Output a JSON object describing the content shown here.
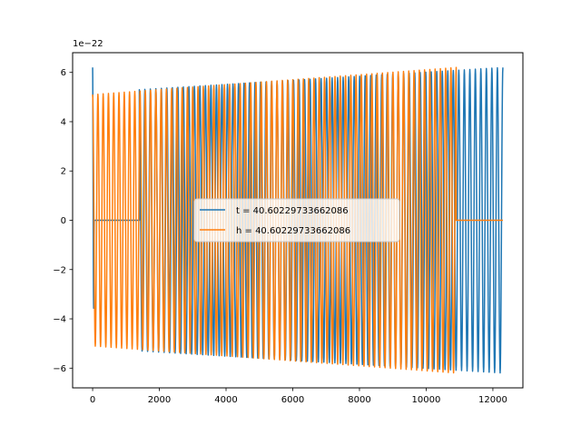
{
  "chart_data": {
    "type": "line",
    "offset_text": "1e−22",
    "xlim": [
      -600,
      12900
    ],
    "ylim": [
      -6.8,
      6.8
    ],
    "xticks": [
      0,
      2000,
      4000,
      6000,
      8000,
      10000,
      12000
    ],
    "xtick_labels": [
      "0",
      "2000",
      "4000",
      "6000",
      "8000",
      "10000",
      "12000"
    ],
    "yticks": [
      -6,
      -4,
      -2,
      0,
      2,
      4,
      6
    ],
    "ytick_labels": [
      "−6",
      "−4",
      "−2",
      "0",
      "2",
      "4",
      "6"
    ],
    "legend_placement": "center",
    "series": [
      {
        "name": "t = 40.60229733662086",
        "color": "#1f77b4",
        "segments": [
          {
            "x_start": 0,
            "x_end": 50,
            "amp_start": 6.2,
            "amp_end": 2.1,
            "cycles": 0.75
          },
          {
            "x_start": 50,
            "x_end": 1400,
            "amp_start": 0,
            "amp_end": 0,
            "cycles": 0
          },
          {
            "x_start": 1400,
            "x_end": 12300,
            "amp_start": 5.3,
            "amp_end": 6.2,
            "cycles": 66
          }
        ]
      },
      {
        "name": "h = 40.60229733662086",
        "color": "#ff7f0e",
        "segments": [
          {
            "x_start": 0,
            "x_end": 10900,
            "amp_start": 5.1,
            "amp_end": 6.2,
            "cycles": 69
          },
          {
            "x_start": 10900,
            "x_end": 12300,
            "amp_start": 0,
            "amp_end": 0,
            "cycles": 0
          }
        ]
      }
    ]
  }
}
